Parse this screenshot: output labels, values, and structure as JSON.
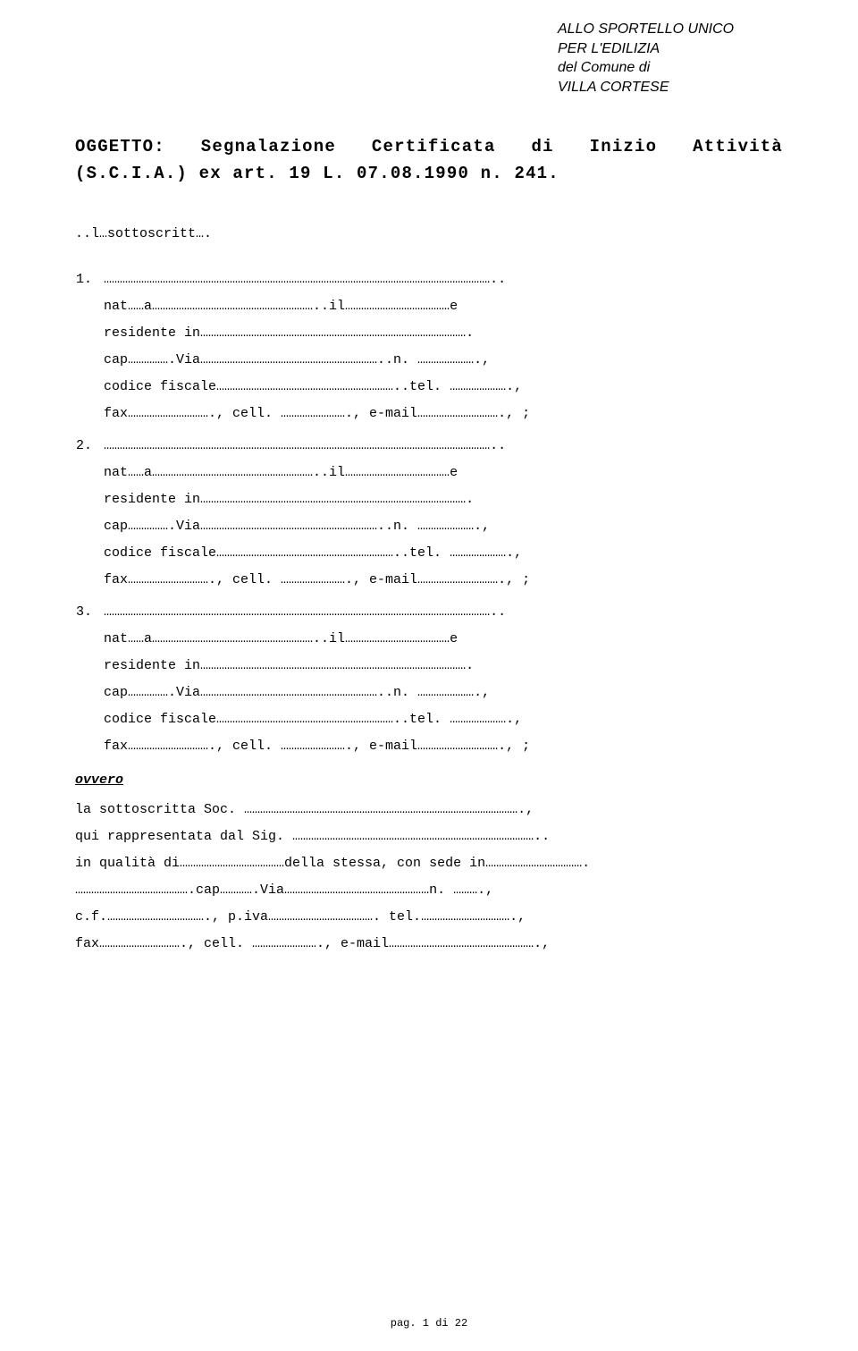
{
  "colors": {
    "text": "#000000",
    "background": "#ffffff"
  },
  "typography": {
    "body_font": "Courier New",
    "address_font": "Arial",
    "body_size_pt": 11,
    "title_size_pt": 14,
    "address_size_pt": 12,
    "address_style": "italic",
    "line_height_body": 2.0
  },
  "address": {
    "line1": "ALLO SPORTELLO UNICO",
    "line2": "PER L'EDILIZIA",
    "line3": "del Comune di",
    "line4": "VILLA CORTESE"
  },
  "oggetto": {
    "line1": "OGGETTO: Segnalazione Certificata di Inizio Attività",
    "line2": "(S.C.I.A.) ex art. 19 L. 07.08.1990 n. 241."
  },
  "sottoscritt": "..l…sottoscritt….",
  "persons": [
    {
      "row1": "………………………………………………………………………………………………………………………………..",
      "row2": "nat……a……………………………………………………..il…………………………………e",
      "row3": "residente in……………………………………………………………………………………….",
      "row4": "cap…………….Via…………………………………………………………..n. ………………….,",
      "row5": "codice fiscale…………………………………………………………..tel. ………………….,",
      "row6": "fax…………………………., cell. ……………………., e-mail…………………………., ;"
    },
    {
      "row1": "………………………………………………………………………………………………………………………………..",
      "row2": "nat……a……………………………………………………..il…………………………………e",
      "row3": "residente in……………………………………………………………………………………….",
      "row4": "cap…………….Via…………………………………………………………..n. ………………….,",
      "row5": "codice fiscale…………………………………………………………..tel. ………………….,",
      "row6": "fax…………………………., cell. ……………………., e-mail…………………………., ;"
    },
    {
      "row1": "………………………………………………………………………………………………………………………………..",
      "row2": "nat……a……………………………………………………..il…………………………………e",
      "row3": "residente in……………………………………………………………………………………….",
      "row4": "cap…………….Via…………………………………………………………..n. ………………….,",
      "row5": "codice fiscale…………………………………………………………..tel. ………………….,",
      "row6": "fax…………………………., cell. ……………………., e-mail…………………………., ;"
    }
  ],
  "ovvero": "ovvero",
  "society": {
    "row1": "la sottoscritta Soc. ………………………………………………………………………………………….,",
    "row2": "qui rappresentata dal Sig. ………………………………………………………………………………..",
    "row3": "in qualità di…………………………………della stessa, con sede in……………………………….",
    "row4": "…………………………………….cap………….Via………………………………………………n. ……….,",
    "row5": "c.f.………………………………., p.iva…………………………………. tel.…………………………….,",
    "row6": "fax…………………………., cell. ……………………., e-mail……………………………………………….,"
  },
  "footer": "pag. 1 di 22"
}
